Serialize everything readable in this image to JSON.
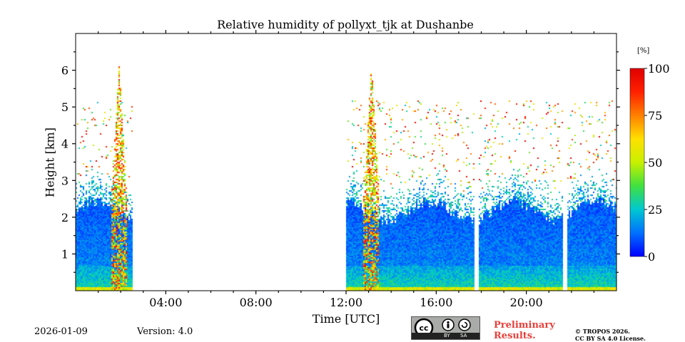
{
  "footer": {
    "date": "2026-01-09",
    "version": "Version: 4.0",
    "preliminary_line1": "Preliminary",
    "preliminary_line2": "Results.",
    "license_line1": "© TROPOS 2026.",
    "license_line2": "CC BY SA 4.0 License.",
    "badge_cc": "cc",
    "badge_by": "BY",
    "badge_sa": "SA"
  },
  "chart_data": {
    "type": "heatmap",
    "title": "Relative humidity of pollyxt_tjk at Dushanbe",
    "xlabel": "Time [UTC]",
    "ylabel": "Height [km]",
    "x_range_hours": [
      0,
      24
    ],
    "y_range_km": [
      0,
      7
    ],
    "x_ticks": [
      {
        "value": 4,
        "label": "04:00"
      },
      {
        "value": 8,
        "label": "08:00"
      },
      {
        "value": 12,
        "label": "12:00"
      },
      {
        "value": 16,
        "label": "16:00"
      },
      {
        "value": 20,
        "label": "20:00"
      }
    ],
    "y_ticks": [
      {
        "value": 1,
        "label": "1"
      },
      {
        "value": 2,
        "label": "2"
      },
      {
        "value": 3,
        "label": "3"
      },
      {
        "value": 4,
        "label": "4"
      },
      {
        "value": 5,
        "label": "5"
      },
      {
        "value": 6,
        "label": "6"
      }
    ],
    "colorbar": {
      "unit": "[%]",
      "range": [
        0,
        100
      ],
      "ticks": [
        {
          "value": 0,
          "label": "0"
        },
        {
          "value": 25,
          "label": "25"
        },
        {
          "value": 50,
          "label": "50"
        },
        {
          "value": 75,
          "label": "75"
        },
        {
          "value": 100,
          "label": "100"
        }
      ],
      "colormap": [
        "#0000ff",
        "#0070ff",
        "#00c8d0",
        "#40e040",
        "#c8f000",
        "#ffe000",
        "#ff8000",
        "#ff2000",
        "#e00000"
      ]
    },
    "data_segments_hours": [
      [
        0,
        2.5
      ],
      [
        12,
        17.7
      ],
      [
        17.9,
        21.6
      ],
      [
        21.8,
        24
      ]
    ],
    "profile_description": {
      "boundary_layer_top_km": 2.2,
      "near_surface_rh_percent": 30,
      "boundary_layer_rh_percent": 15,
      "sparse_high_rh_above_km": 3,
      "plume_near_hours": [
        1.9,
        13.1
      ],
      "plume_top_km": 6.2
    }
  }
}
